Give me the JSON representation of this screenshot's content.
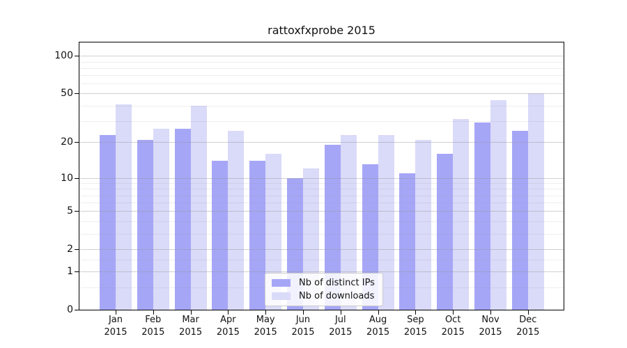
{
  "chart_data": {
    "type": "bar",
    "title": "rattoxfxprobe 2015",
    "categories": [
      "Jan",
      "Feb",
      "Mar",
      "Apr",
      "May",
      "Jun",
      "Jul",
      "Aug",
      "Sep",
      "Oct",
      "Nov",
      "Dec"
    ],
    "category_year": "2015",
    "series": [
      {
        "name": "Nb of distinct IPs",
        "color": "#a6a6f7",
        "values": [
          23,
          21,
          26,
          14,
          14,
          10,
          19,
          13,
          11,
          16,
          29,
          25
        ]
      },
      {
        "name": "Nb of downloads",
        "color": "#dadaf9",
        "values": [
          41,
          26,
          40,
          25,
          16,
          12,
          23,
          23,
          21,
          31,
          44,
          50
        ]
      }
    ],
    "xlabel": "",
    "ylabel": "",
    "yscale": "log1p",
    "ylim": [
      0,
      128
    ],
    "yticks": [
      100,
      50,
      20,
      10,
      5,
      2,
      1,
      0
    ],
    "y_minor_ticks": [
      0.5,
      1.5,
      3,
      4,
      6,
      7,
      8,
      9,
      30,
      40,
      60,
      70,
      80,
      90
    ],
    "grid": "horizontal",
    "legend_position": "lower-center",
    "frame": "box"
  }
}
